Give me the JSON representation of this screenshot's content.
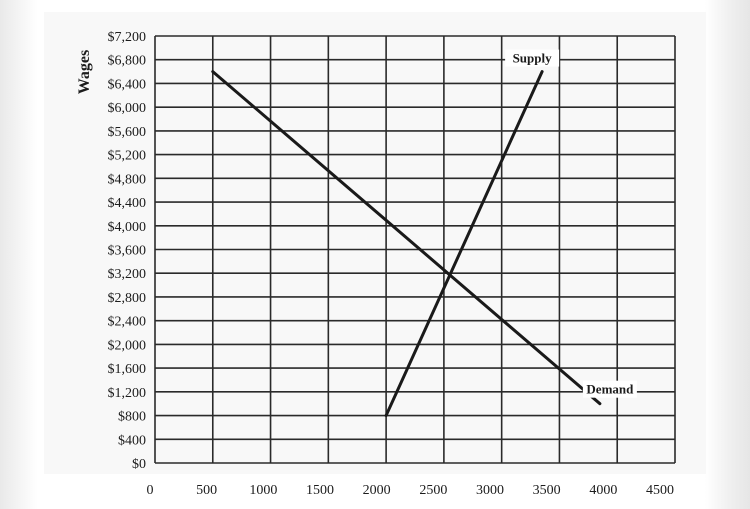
{
  "chart_data": {
    "type": "line",
    "title": "",
    "xlabel": "",
    "ylabel": "Wages",
    "xlim": [
      0,
      4500
    ],
    "ylim": [
      0,
      7200
    ],
    "x_ticks": [
      "0",
      "500",
      "1000",
      "1500",
      "2000",
      "2500",
      "3000",
      "3500",
      "4000",
      "4500"
    ],
    "y_ticks": [
      "$0",
      "$400",
      "$800",
      "$1,200",
      "$1,600",
      "$2,000",
      "$2,400",
      "$2,800",
      "$3,200",
      "$3,600",
      "$4,000",
      "$4,400",
      "$4,800",
      "$5,200",
      "$5,600",
      "$6,000",
      "$6,400",
      "$6,800",
      "$7,200"
    ],
    "grid": true,
    "series": [
      {
        "name": "Supply",
        "points": [
          [
            2000,
            800
          ],
          [
            3350,
            6600
          ]
        ],
        "color": "#1a1a1a"
      },
      {
        "name": "Demand",
        "points": [
          [
            500,
            6600
          ],
          [
            3850,
            1000
          ]
        ],
        "color": "#1a1a1a"
      }
    ]
  }
}
